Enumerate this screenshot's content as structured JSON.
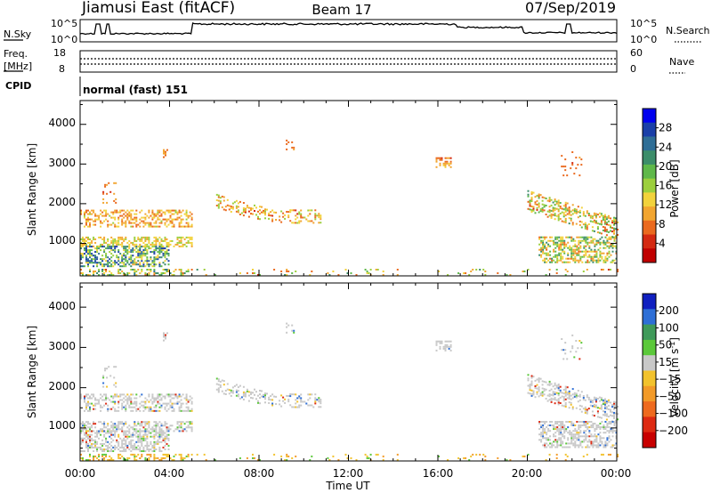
{
  "header": {
    "radar": "Jiamusi East (fitACF)",
    "beam": "Beam 17",
    "date": "07/Sep/2019"
  },
  "noise_panel": {
    "left_label": "N.Sky",
    "right_label": "N.Search",
    "left_ticks": [
      "10^5",
      "10^0"
    ],
    "right_ticks": [
      "10^5",
      "10^0"
    ]
  },
  "freq_panel": {
    "left_label_top": "Freq.",
    "left_label_bottom": "[MHz]",
    "right_label": "Nave",
    "left_ticks": [
      "18",
      "8"
    ],
    "right_ticks": [
      "60",
      "0"
    ]
  },
  "cpid_panel": {
    "label": "CPID",
    "value": "normal (fast) 151"
  },
  "chart_data": [
    {
      "type": "heatmap",
      "name": "Power",
      "ylabel": "Slant Range [km]",
      "xlabel": "",
      "y_ticks": [
        "1000",
        "2000",
        "3000",
        "4000"
      ],
      "ylim": [
        180,
        4600
      ],
      "xlim": [
        0,
        24
      ],
      "colorbar": {
        "label": "Power [dB]",
        "ticks": [
          "4",
          "8",
          "12",
          "16",
          "20",
          "24",
          "28"
        ],
        "colors": [
          "#0000ee",
          "#1a3fa8",
          "#2f6e96",
          "#3c8d6a",
          "#5fb84a",
          "#9ccf3d",
          "#f2d23c",
          "#f2a530",
          "#ea6a1f",
          "#d42a12",
          "#c00000"
        ]
      }
    },
    {
      "type": "heatmap",
      "name": "Velocity",
      "ylabel": "Slant Range [km]",
      "xlabel": "Time UT",
      "y_ticks": [
        "1000",
        "2000",
        "3000",
        "4000"
      ],
      "ylim": [
        180,
        4600
      ],
      "xlim": [
        0,
        24
      ],
      "x_ticks": [
        "00:00",
        "04:00",
        "08:00",
        "12:00",
        "16:00",
        "20:00",
        "00:00"
      ],
      "colorbar": {
        "label": "Velocity [m s",
        "label_sup": "-1",
        "label_end": "]",
        "ticks": [
          "200",
          "100",
          "50",
          "15",
          "−15",
          "−50",
          "−100",
          "−200"
        ],
        "colors": [
          "#1020c0",
          "#2e6fd6",
          "#3f9a5a",
          "#5bc83a",
          "#c8c8c8",
          "#f2c22c",
          "#f29a28",
          "#ee6a1e",
          "#dd2a12",
          "#c80000"
        ]
      }
    }
  ]
}
